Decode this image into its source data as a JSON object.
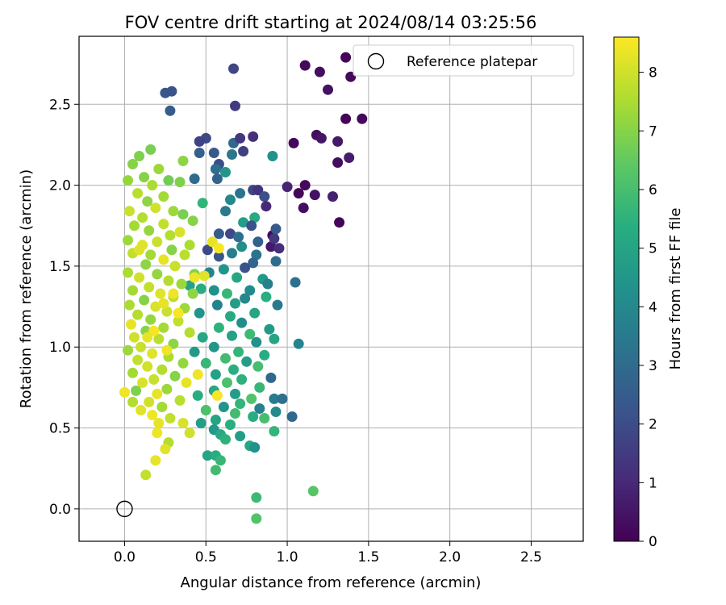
{
  "chart_data": {
    "type": "scatter",
    "title": "FOV centre drift starting at 2024/08/14 03:25:56",
    "xlabel": "Angular distance from reference (arcmin)",
    "ylabel": "Rotation from reference (arcmin)",
    "xlim": [
      -0.28,
      2.82
    ],
    "ylim": [
      -0.2,
      2.92
    ],
    "xticks": [
      0.0,
      0.5,
      1.0,
      1.5,
      2.0,
      2.5
    ],
    "xtick_labels": [
      "0.0",
      "0.5",
      "1.0",
      "1.5",
      "2.0",
      "2.5"
    ],
    "yticks": [
      0.0,
      0.5,
      1.0,
      1.5,
      2.0,
      2.5
    ],
    "ytick_labels": [
      "0.0",
      "0.5",
      "1.0",
      "1.5",
      "2.0",
      "2.5"
    ],
    "grid": true,
    "legend": {
      "placement": "top-right",
      "entries": [
        "Reference platepar"
      ]
    },
    "reference_point": {
      "label": "Reference platepar",
      "x": 0.0,
      "y": 0.0
    },
    "colorbar": {
      "label": "Hours from first FF file",
      "colormap": "viridis",
      "min": 0,
      "max": 8.6,
      "ticks": [
        0,
        1,
        2,
        3,
        4,
        5,
        6,
        7,
        8
      ],
      "tick_labels": [
        "0",
        "1",
        "2",
        "3",
        "4",
        "5",
        "6",
        "7",
        "8"
      ]
    },
    "colormap_colors": [
      "#440154",
      "#472c7a",
      "#3b528b",
      "#2c728e",
      "#21918c",
      "#28ae80",
      "#5ec962",
      "#addc30",
      "#fde725"
    ],
    "clusters_note_hidden": true,
    "points": [
      [
        1.36,
        2.79,
        0.1
      ],
      [
        1.11,
        2.74,
        0.2
      ],
      [
        1.2,
        2.7,
        0.3
      ],
      [
        1.39,
        2.67,
        0.2
      ],
      [
        1.25,
        2.59,
        0.4
      ],
      [
        1.36,
        2.41,
        0.1
      ],
      [
        1.46,
        2.41,
        0.2
      ],
      [
        1.18,
        2.31,
        0.3
      ],
      [
        1.21,
        2.29,
        0.5
      ],
      [
        1.31,
        2.27,
        0.6
      ],
      [
        1.04,
        2.26,
        0.2
      ],
      [
        1.38,
        2.17,
        0.7
      ],
      [
        1.31,
        2.14,
        0.3
      ],
      [
        1.11,
        2.0,
        0.2
      ],
      [
        1.0,
        1.99,
        0.9
      ],
      [
        1.07,
        1.95,
        0.1
      ],
      [
        1.17,
        1.94,
        0.4
      ],
      [
        1.28,
        1.93,
        0.8
      ],
      [
        1.1,
        1.86,
        0.3
      ],
      [
        1.32,
        1.77,
        0.1
      ],
      [
        0.91,
        1.69,
        0.2
      ],
      [
        0.9,
        1.62,
        0.6
      ],
      [
        0.95,
        1.61,
        1.1
      ],
      [
        0.92,
        1.67,
        1.4
      ],
      [
        0.67,
        2.72,
        1.8
      ],
      [
        0.25,
        2.57,
        2.3
      ],
      [
        0.29,
        2.58,
        2.2
      ],
      [
        0.68,
        2.49,
        1.5
      ],
      [
        0.28,
        2.46,
        2.5
      ],
      [
        0.5,
        2.29,
        1.9
      ],
      [
        0.46,
        2.27,
        1.7
      ],
      [
        0.79,
        2.3,
        1.2
      ],
      [
        0.67,
        2.26,
        2.9
      ],
      [
        0.71,
        2.29,
        1.4
      ],
      [
        0.55,
        2.2,
        2.4
      ],
      [
        0.73,
        2.21,
        1.6
      ],
      [
        0.66,
        2.19,
        3.4
      ],
      [
        0.91,
        2.18,
        4.3
      ],
      [
        0.46,
        2.2,
        2.6
      ],
      [
        0.58,
        2.13,
        2.0
      ],
      [
        0.56,
        2.1,
        3.1
      ],
      [
        0.62,
        2.08,
        4.5
      ],
      [
        0.43,
        2.04,
        3.0
      ],
      [
        0.57,
        2.04,
        2.7
      ],
      [
        0.79,
        1.97,
        1.8
      ],
      [
        0.82,
        1.97,
        1.3
      ],
      [
        0.71,
        1.95,
        3.3
      ],
      [
        0.86,
        1.93,
        2.1
      ],
      [
        0.65,
        1.91,
        4.0
      ],
      [
        0.48,
        1.89,
        5.6
      ],
      [
        0.62,
        1.84,
        3.5
      ],
      [
        0.87,
        1.87,
        1.0
      ],
      [
        0.8,
        1.8,
        5.2
      ],
      [
        0.73,
        1.77,
        4.8
      ],
      [
        0.78,
        1.75,
        2.2
      ],
      [
        0.65,
        1.7,
        1.9
      ],
      [
        0.58,
        1.7,
        2.5
      ],
      [
        0.7,
        1.68,
        3.1
      ],
      [
        0.82,
        1.65,
        2.7
      ],
      [
        0.93,
        1.73,
        2.4
      ],
      [
        0.72,
        1.62,
        4.2
      ],
      [
        0.66,
        1.58,
        3.6
      ],
      [
        0.58,
        1.56,
        2.3
      ],
      [
        0.51,
        1.6,
        1.9
      ],
      [
        0.81,
        1.57,
        3.3
      ],
      [
        0.79,
        1.52,
        2.8
      ],
      [
        0.93,
        1.53,
        3.0
      ],
      [
        0.74,
        1.49,
        2.2
      ],
      [
        0.61,
        1.48,
        4.4
      ],
      [
        0.52,
        1.46,
        3.9
      ],
      [
        0.69,
        1.43,
        5.1
      ],
      [
        0.85,
        1.42,
        4.6
      ],
      [
        1.05,
        1.4,
        3.2
      ],
      [
        0.88,
        1.39,
        3.7
      ],
      [
        0.77,
        1.35,
        4.1
      ],
      [
        0.63,
        1.33,
        5.7
      ],
      [
        0.55,
        1.35,
        4.3
      ],
      [
        0.47,
        1.36,
        5.3
      ],
      [
        0.4,
        1.38,
        4.9
      ],
      [
        0.74,
        1.3,
        4.0
      ],
      [
        0.87,
        1.31,
        5.4
      ],
      [
        0.68,
        1.27,
        4.7
      ],
      [
        0.57,
        1.26,
        3.8
      ],
      [
        0.94,
        1.26,
        3.5
      ],
      [
        0.8,
        1.21,
        5.0
      ],
      [
        0.65,
        1.19,
        5.2
      ],
      [
        0.46,
        1.21,
        4.4
      ],
      [
        0.72,
        1.15,
        4.2
      ],
      [
        0.89,
        1.11,
        4.6
      ],
      [
        0.58,
        1.12,
        5.5
      ],
      [
        0.77,
        1.08,
        5.8
      ],
      [
        0.66,
        1.07,
        4.9
      ],
      [
        0.48,
        1.06,
        5.1
      ],
      [
        0.92,
        1.05,
        5.0
      ],
      [
        0.81,
        1.03,
        4.3
      ],
      [
        1.07,
        1.02,
        3.9
      ],
      [
        0.55,
        1.0,
        4.5
      ],
      [
        0.7,
        0.97,
        5.6
      ],
      [
        0.43,
        0.97,
        4.6
      ],
      [
        0.86,
        0.95,
        5.3
      ],
      [
        0.62,
        0.93,
        5.9
      ],
      [
        0.75,
        0.91,
        4.8
      ],
      [
        0.5,
        0.9,
        5.7
      ],
      [
        0.82,
        0.88,
        6.0
      ],
      [
        0.67,
        0.86,
        5.4
      ],
      [
        0.56,
        0.83,
        4.9
      ],
      [
        0.9,
        0.81,
        2.9
      ],
      [
        0.72,
        0.8,
        5.5
      ],
      [
        0.63,
        0.78,
        6.1
      ],
      [
        0.83,
        0.75,
        5.7
      ],
      [
        0.55,
        0.73,
        5.1
      ],
      [
        0.68,
        0.71,
        4.7
      ],
      [
        0.45,
        0.7,
        5.3
      ],
      [
        0.78,
        0.68,
        6.2
      ],
      [
        0.92,
        0.68,
        3.6
      ],
      [
        0.97,
        0.68,
        3.1
      ],
      [
        0.71,
        0.65,
        5.6
      ],
      [
        0.61,
        0.63,
        4.4
      ],
      [
        0.83,
        0.62,
        3.7
      ],
      [
        0.5,
        0.61,
        6.1
      ],
      [
        0.93,
        0.6,
        4.1
      ],
      [
        0.68,
        0.59,
        5.9
      ],
      [
        0.79,
        0.57,
        5.3
      ],
      [
        1.03,
        0.57,
        2.9
      ],
      [
        0.56,
        0.55,
        5.0
      ],
      [
        0.86,
        0.56,
        6.0
      ],
      [
        0.47,
        0.53,
        4.8
      ],
      [
        0.65,
        0.52,
        5.4
      ],
      [
        0.55,
        0.49,
        4.6
      ],
      [
        0.92,
        0.48,
        5.6
      ],
      [
        0.59,
        0.46,
        5.2
      ],
      [
        0.71,
        0.45,
        4.8
      ],
      [
        0.62,
        0.43,
        5.5
      ],
      [
        0.77,
        0.39,
        5.1
      ],
      [
        0.8,
        0.38,
        4.3
      ],
      [
        0.51,
        0.33,
        5.0
      ],
      [
        0.56,
        0.33,
        5.3
      ],
      [
        0.59,
        0.3,
        5.7
      ],
      [
        0.56,
        0.24,
        5.9
      ],
      [
        1.16,
        0.11,
        6.3
      ],
      [
        0.81,
        0.07,
        5.8
      ],
      [
        0.81,
        -0.06,
        6.2
      ],
      [
        0.09,
        2.18,
        6.9
      ],
      [
        0.16,
        2.22,
        6.8
      ],
      [
        0.05,
        2.13,
        7.0
      ],
      [
        0.21,
        2.1,
        7.3
      ],
      [
        0.36,
        2.15,
        7.1
      ],
      [
        0.02,
        2.03,
        7.2
      ],
      [
        0.12,
        2.05,
        7.0
      ],
      [
        0.17,
        2.0,
        7.5
      ],
      [
        0.27,
        2.03,
        6.7
      ],
      [
        0.34,
        2.02,
        6.9
      ],
      [
        0.08,
        1.95,
        7.7
      ],
      [
        0.24,
        1.93,
        7.4
      ],
      [
        0.14,
        1.9,
        7.1
      ],
      [
        0.03,
        1.84,
        7.9
      ],
      [
        0.19,
        1.86,
        8.0
      ],
      [
        0.3,
        1.84,
        7.3
      ],
      [
        0.36,
        1.82,
        6.8
      ],
      [
        0.11,
        1.8,
        7.6
      ],
      [
        0.42,
        1.78,
        7.0
      ],
      [
        0.24,
        1.76,
        7.8
      ],
      [
        0.06,
        1.75,
        7.4
      ],
      [
        0.15,
        1.72,
        7.2
      ],
      [
        0.34,
        1.71,
        8.1
      ],
      [
        0.28,
        1.69,
        7.6
      ],
      [
        0.02,
        1.66,
        7.3
      ],
      [
        0.2,
        1.65,
        7.9
      ],
      [
        0.11,
        1.63,
        8.2
      ],
      [
        0.4,
        1.63,
        7.5
      ],
      [
        0.29,
        1.6,
        7.0
      ],
      [
        0.05,
        1.58,
        7.8
      ],
      [
        0.16,
        1.57,
        7.4
      ],
      [
        0.37,
        1.57,
        7.7
      ],
      [
        0.24,
        1.54,
        8.3
      ],
      [
        0.13,
        1.51,
        7.1
      ],
      [
        0.31,
        1.5,
        7.9
      ],
      [
        0.02,
        1.46,
        7.5
      ],
      [
        0.2,
        1.45,
        7.2
      ],
      [
        0.43,
        1.45,
        6.9
      ],
      [
        0.09,
        1.43,
        8.0
      ],
      [
        0.27,
        1.41,
        7.6
      ],
      [
        0.35,
        1.39,
        7.3
      ],
      [
        0.15,
        1.37,
        7.8
      ],
      [
        0.05,
        1.35,
        7.4
      ],
      [
        0.22,
        1.33,
        8.2
      ],
      [
        0.42,
        1.33,
        7.1
      ],
      [
        0.3,
        1.31,
        7.7
      ],
      [
        0.12,
        1.29,
        7.0
      ],
      [
        0.03,
        1.26,
        7.5
      ],
      [
        0.19,
        1.25,
        8.1
      ],
      [
        0.37,
        1.24,
        7.3
      ],
      [
        0.26,
        1.22,
        7.9
      ],
      [
        0.08,
        1.2,
        7.6
      ],
      [
        0.16,
        1.17,
        7.2
      ],
      [
        0.33,
        1.16,
        7.8
      ],
      [
        0.04,
        1.14,
        8.3
      ],
      [
        0.24,
        1.12,
        7.4
      ],
      [
        0.13,
        1.1,
        7.0
      ],
      [
        0.4,
        1.09,
        7.6
      ],
      [
        0.06,
        1.06,
        8.0
      ],
      [
        0.21,
        1.05,
        7.7
      ],
      [
        0.3,
        1.02,
        7.1
      ],
      [
        0.1,
        1.0,
        7.9
      ],
      [
        0.02,
        0.98,
        7.3
      ],
      [
        0.17,
        0.96,
        8.2
      ],
      [
        0.27,
        0.94,
        7.5
      ],
      [
        0.08,
        0.92,
        7.8
      ],
      [
        0.36,
        0.9,
        7.2
      ],
      [
        0.14,
        0.88,
        8.0
      ],
      [
        0.23,
        0.86,
        7.6
      ],
      [
        0.05,
        0.84,
        7.4
      ],
      [
        0.31,
        0.82,
        7.0
      ],
      [
        0.18,
        0.8,
        7.9
      ],
      [
        0.11,
        0.78,
        8.1
      ],
      [
        0.26,
        0.74,
        7.3
      ],
      [
        0.07,
        0.73,
        6.9
      ],
      [
        0.2,
        0.71,
        8.3
      ],
      [
        0.0,
        0.72,
        8.4
      ],
      [
        0.34,
        0.67,
        7.7
      ],
      [
        0.15,
        0.66,
        8.0
      ],
      [
        0.05,
        0.66,
        7.6
      ],
      [
        0.23,
        0.63,
        7.4
      ],
      [
        0.1,
        0.61,
        8.2
      ],
      [
        0.17,
        0.58,
        8.4
      ],
      [
        0.28,
        0.56,
        7.8
      ],
      [
        0.21,
        0.53,
        8.3
      ],
      [
        0.36,
        0.53,
        8.1
      ],
      [
        0.2,
        0.47,
        8.4
      ],
      [
        0.4,
        0.47,
        8.0
      ],
      [
        0.27,
        0.41,
        7.6
      ],
      [
        0.25,
        0.37,
        8.2
      ],
      [
        0.19,
        0.3,
        8.3
      ],
      [
        0.13,
        0.21,
        7.8
      ],
      [
        0.54,
        1.65,
        8.3
      ],
      [
        0.58,
        1.61,
        8.5
      ],
      [
        0.49,
        1.44,
        8.2
      ],
      [
        0.3,
        1.33,
        8.4
      ],
      [
        0.24,
        1.27,
        8.3
      ],
      [
        0.33,
        1.21,
        8.5
      ],
      [
        0.43,
        1.43,
        8.4
      ],
      [
        0.18,
        1.1,
        8.5
      ],
      [
        0.45,
        0.83,
        8.4
      ],
      [
        0.38,
        0.78,
        8.3
      ],
      [
        0.57,
        0.7,
        8.5
      ],
      [
        0.26,
        0.98,
        8.4
      ],
      [
        0.09,
        1.6,
        8.2
      ],
      [
        0.14,
        1.06,
        8.3
      ]
    ]
  }
}
